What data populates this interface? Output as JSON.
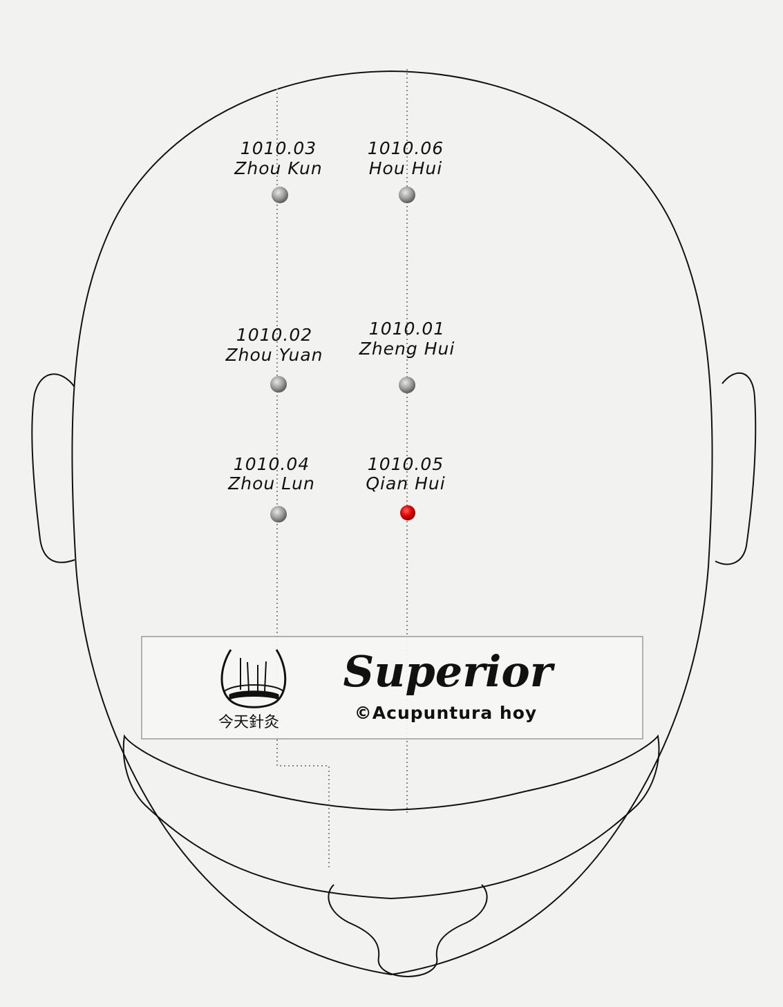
{
  "diagram": {
    "view": "superior",
    "points": [
      {
        "code": "1010.03",
        "name": "Zhou Kun",
        "highlight": false
      },
      {
        "code": "1010.06",
        "name": "Hou Hui",
        "highlight": false
      },
      {
        "code": "1010.02",
        "name": "Zhou Yuan",
        "highlight": false
      },
      {
        "code": "1010.01",
        "name": "Zheng Hui",
        "highlight": false
      },
      {
        "code": "1010.04",
        "name": "Zhou Lun",
        "highlight": false
      },
      {
        "code": "1010.05",
        "name": "Qian Hui",
        "highlight": true
      }
    ],
    "colors": {
      "background": "#f2f2f0",
      "outline": "#111111",
      "point_normal": "#9a9a9a",
      "point_highlight": "#e00000",
      "guide_line": "#888888"
    }
  },
  "banner": {
    "title": "Superior",
    "copyright": "©Acupuntura hoy",
    "logo_chars": "今天針灸"
  }
}
